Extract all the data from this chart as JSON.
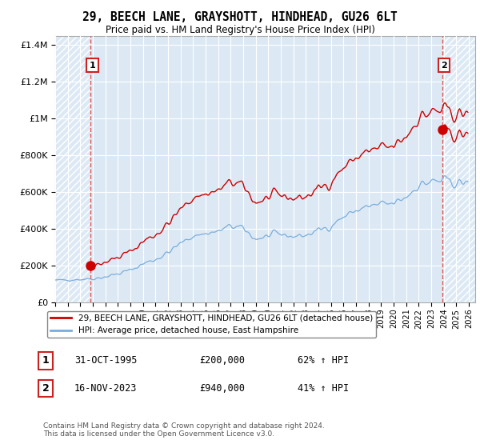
{
  "title": "29, BEECH LANE, GRAYSHOTT, HINDHEAD, GU26 6LT",
  "subtitle": "Price paid vs. HM Land Registry's House Price Index (HPI)",
  "sale1_label": "1",
  "sale2_label": "2",
  "legend_line1": "29, BEECH LANE, GRAYSHOTT, HINDHEAD, GU26 6LT (detached house)",
  "legend_line2": "HPI: Average price, detached house, East Hampshire",
  "footer": "Contains HM Land Registry data © Crown copyright and database right 2024.\nThis data is licensed under the Open Government Licence v3.0.",
  "table_row1_date": "31-OCT-1995",
  "table_row1_price": "£200,000",
  "table_row1_hpi": "62% ↑ HPI",
  "table_row2_date": "16-NOV-2023",
  "table_row2_price": "£940,000",
  "table_row2_hpi": "41% ↑ HPI",
  "hpi_color": "#7aaddc",
  "price_color": "#cc0000",
  "dashed_line_color": "#dd4444",
  "ylim_max": 1450000,
  "yticks": [
    0,
    200000,
    400000,
    600000,
    800000,
    1000000,
    1200000,
    1400000
  ],
  "plot_bg_color": "#dce9f5",
  "hatch_color": "#c0c8d4",
  "sale1_year": 1995.83,
  "sale1_price": 200000,
  "sale2_year": 2023.88,
  "sale2_price": 940000,
  "xmin": 1993,
  "xmax": 2026.5
}
